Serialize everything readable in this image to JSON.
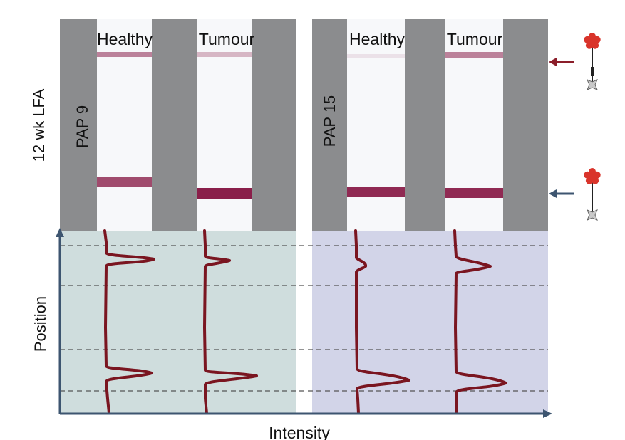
{
  "figure": {
    "left_axis_label": "12 wk LFA",
    "position_axis_label": "Position",
    "intensity_axis_label": "Intensity",
    "colors": {
      "strip_frame": "#8b8c8e",
      "strip": "#f7f8fa",
      "band": "#8a1f4a",
      "trace": "#7a1520",
      "panel_left_bg": "#cfdddd",
      "panel_right_bg": "#d2d4e8",
      "axis": "#3d5570",
      "guide_line": "#555555",
      "arrow_red": "#8b1e2a",
      "arrow_blue": "#3d5570",
      "flower_red": "#d9342b",
      "square_grey": "#c9c9c9"
    },
    "panels": [
      {
        "id": "pap9",
        "patient_label": "PAP 9",
        "strips": [
          {
            "label": "Healthy",
            "top_band_intensity": 0.55,
            "bottom_band_intensity": 0.8
          },
          {
            "label": "Tumour",
            "top_band_intensity": 0.3,
            "bottom_band_intensity": 1.0
          }
        ]
      },
      {
        "id": "pap15",
        "patient_label": "PAP 15",
        "strips": [
          {
            "label": "Healthy",
            "top_band_intensity": 0.1,
            "bottom_band_intensity": 0.95
          },
          {
            "label": "Tumour",
            "top_band_intensity": 0.55,
            "bottom_band_intensity": 0.95
          }
        ]
      }
    ],
    "legend_icons": [
      {
        "name": "control-line-probe",
        "arrow": "red"
      },
      {
        "name": "test-line-probe",
        "arrow": "blue"
      }
    ]
  }
}
